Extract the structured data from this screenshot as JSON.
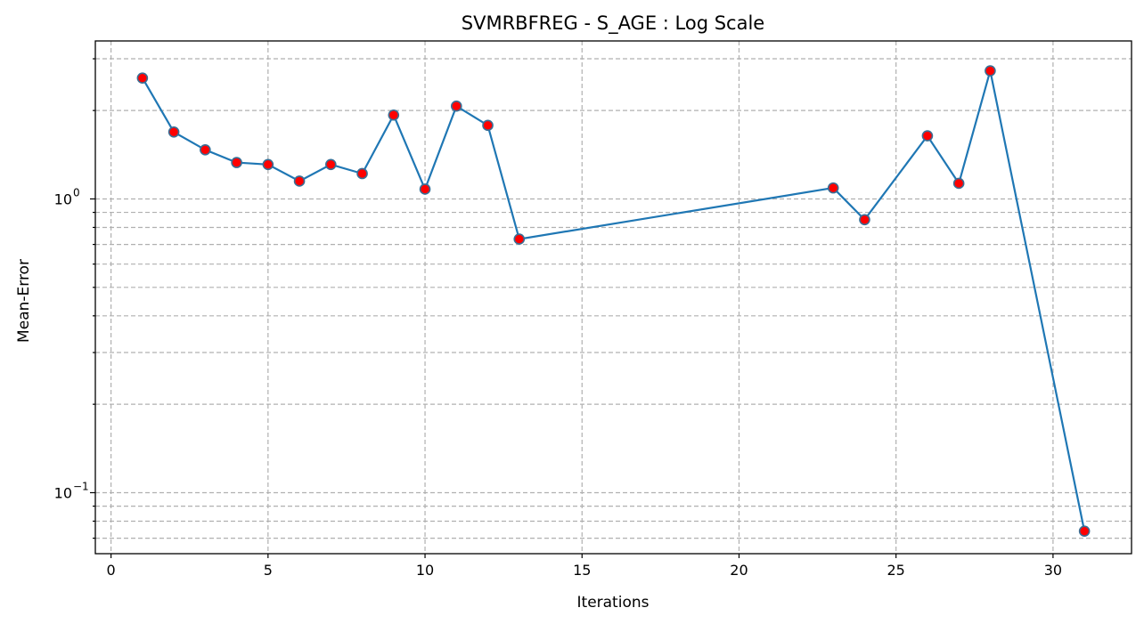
{
  "chart_data": {
    "type": "line",
    "title": "SVMRBFREG - S_AGE : Log Scale",
    "xlabel": "Iterations",
    "ylabel": "Mean-Error",
    "yscale": "log",
    "xlim": [
      -0.5,
      32.5
    ],
    "ylim": [
      0.062,
      3.45
    ],
    "x_ticks": [
      0,
      5,
      10,
      15,
      20,
      25,
      30
    ],
    "y_ticks": [
      {
        "value": 1.0,
        "label": "10",
        "exp": "0"
      },
      {
        "value": 0.1,
        "label": "10",
        "exp": "−1"
      }
    ],
    "grid": true,
    "series": [
      {
        "color": "#1f77b4",
        "marker_color": "#ff0000",
        "x": [
          1,
          2,
          3,
          4,
          5,
          6,
          7,
          8,
          9,
          10,
          11,
          12,
          13,
          23,
          24,
          26,
          27,
          28,
          31
        ],
        "values": [
          2.58,
          1.69,
          1.47,
          1.33,
          1.31,
          1.15,
          1.31,
          1.22,
          1.93,
          1.08,
          2.07,
          1.78,
          0.73,
          1.09,
          0.85,
          1.64,
          1.13,
          2.73,
          0.074
        ]
      }
    ]
  }
}
